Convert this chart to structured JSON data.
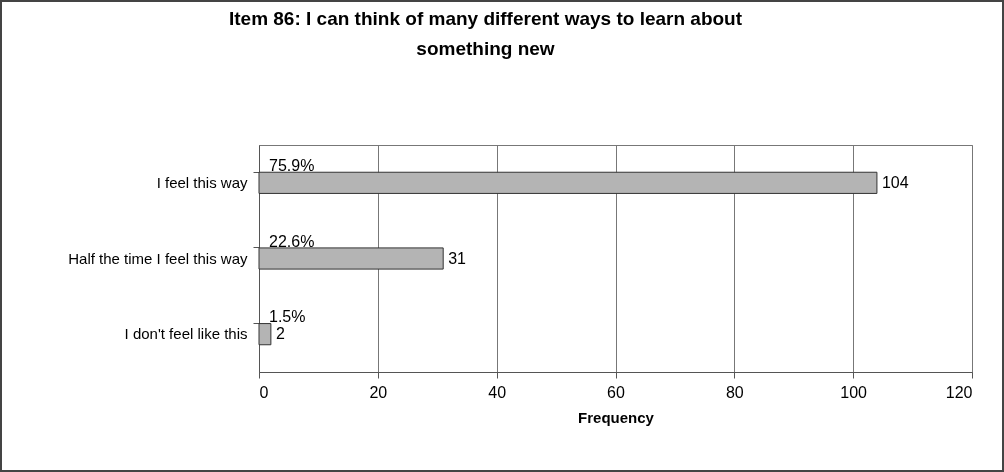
{
  "chart_data": {
    "type": "bar",
    "orientation": "horizontal",
    "title": "Item 86: I can think of many different ways to learn about something new",
    "xlabel": "Frequency",
    "categories": [
      "I feel this way",
      "Half the time I feel this way",
      "I don't feel like this"
    ],
    "values": [
      104,
      31,
      2
    ],
    "color": "#b4b4b4",
    "data_labels": true,
    "xlim": [
      0,
      120
    ],
    "xticks": [
      0,
      20,
      40,
      60,
      80,
      100,
      120
    ],
    "grid": "x",
    "annotations": [
      "75.9%",
      "22.6%",
      "1.5%"
    ]
  }
}
